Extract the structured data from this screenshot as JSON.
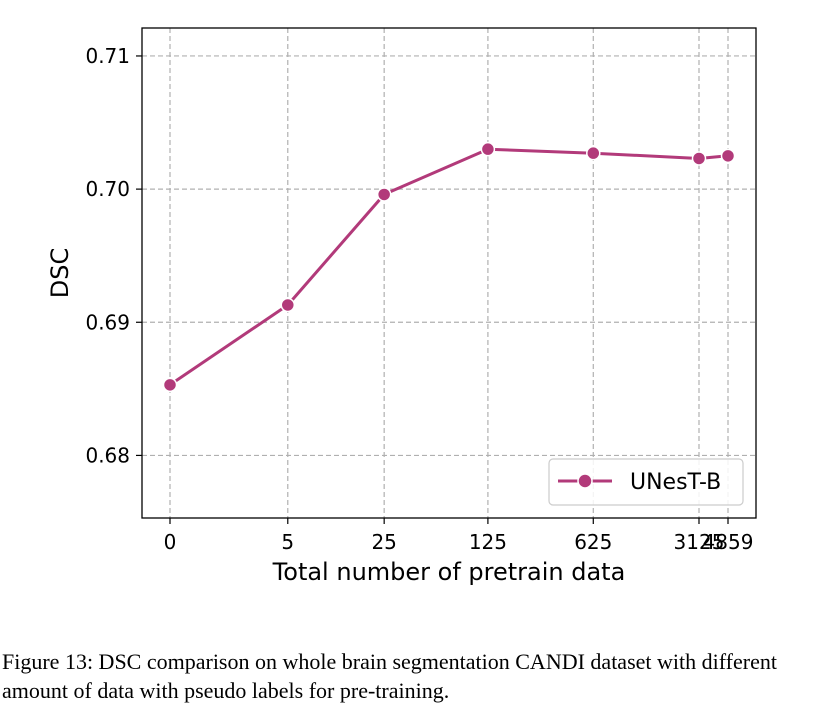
{
  "colors": {
    "series": "#b23a7a",
    "grid": "#b0b0b0",
    "axis": "#000000"
  },
  "caption": "Figure 13: DSC comparison on whole brain segmentation CANDI dataset with different amount of data with pseudo labels for pre-training.",
  "chart_data": {
    "type": "line",
    "title": "",
    "xlabel": "Total number of pretrain data",
    "ylabel": "DSC",
    "x": [
      0,
      5,
      25,
      125,
      625,
      3125,
      4859
    ],
    "x_tick_labels": [
      "0",
      "5",
      "25",
      "125",
      "625",
      "3125",
      "4859"
    ],
    "y_ticks": [
      0.68,
      0.69,
      0.7,
      0.71
    ],
    "y_tick_labels": [
      "0.68",
      "0.69",
      "0.70",
      "0.71"
    ],
    "ylim": [
      0.6753,
      0.7121
    ],
    "grid": true,
    "legend_position": "lower-right",
    "series": [
      {
        "name": "UNesT-B",
        "values": [
          0.6853,
          0.6913,
          0.6996,
          0.703,
          0.7027,
          0.7023,
          0.7025
        ]
      }
    ]
  }
}
